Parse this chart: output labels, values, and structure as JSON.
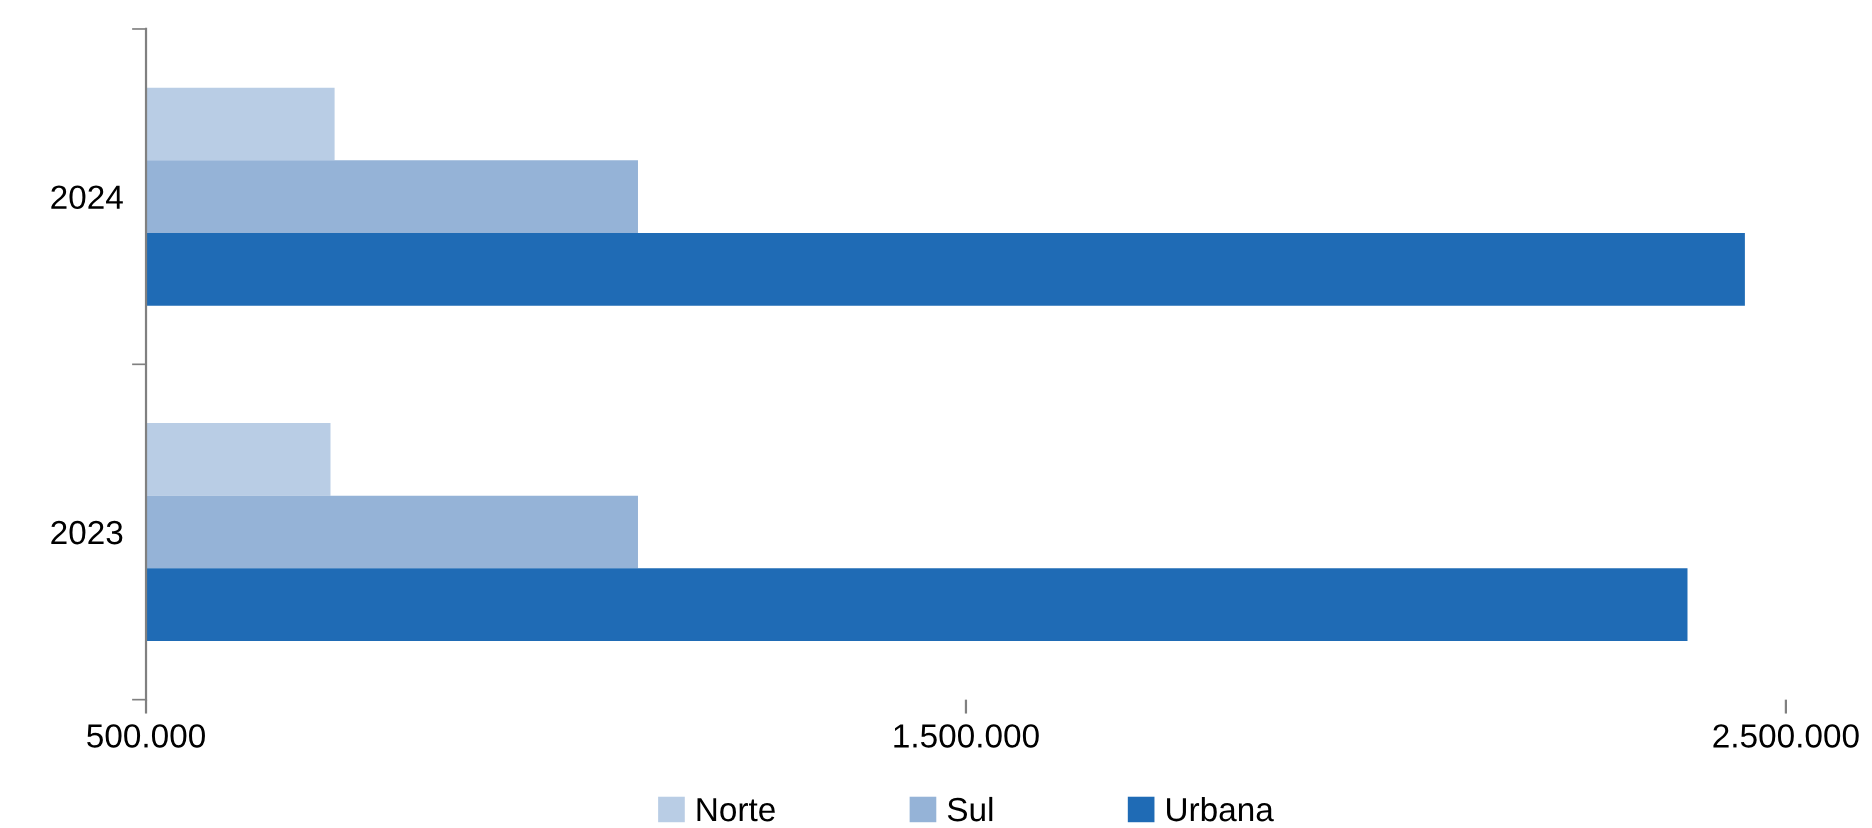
{
  "chart_data": {
    "type": "bar",
    "orientation": "horizontal",
    "categories": [
      "2024",
      "2023"
    ],
    "series": [
      {
        "name": "Norte",
        "color": "#b9cde5",
        "values": [
          730000,
          725000
        ]
      },
      {
        "name": "Sul",
        "color": "#95b3d7",
        "values": [
          1100000,
          1100000
        ]
      },
      {
        "name": "Urbana",
        "color": "#1f6bb5",
        "values": [
          2450000,
          2380000
        ]
      }
    ],
    "xlim": [
      500000,
      2500000
    ],
    "xticks": [
      {
        "value": 500000,
        "label": "500.000"
      },
      {
        "value": 1500000,
        "label": "1.500.000"
      },
      {
        "value": 2500000,
        "label": "2.500.000"
      }
    ],
    "grid": false,
    "legend": "bottom"
  }
}
